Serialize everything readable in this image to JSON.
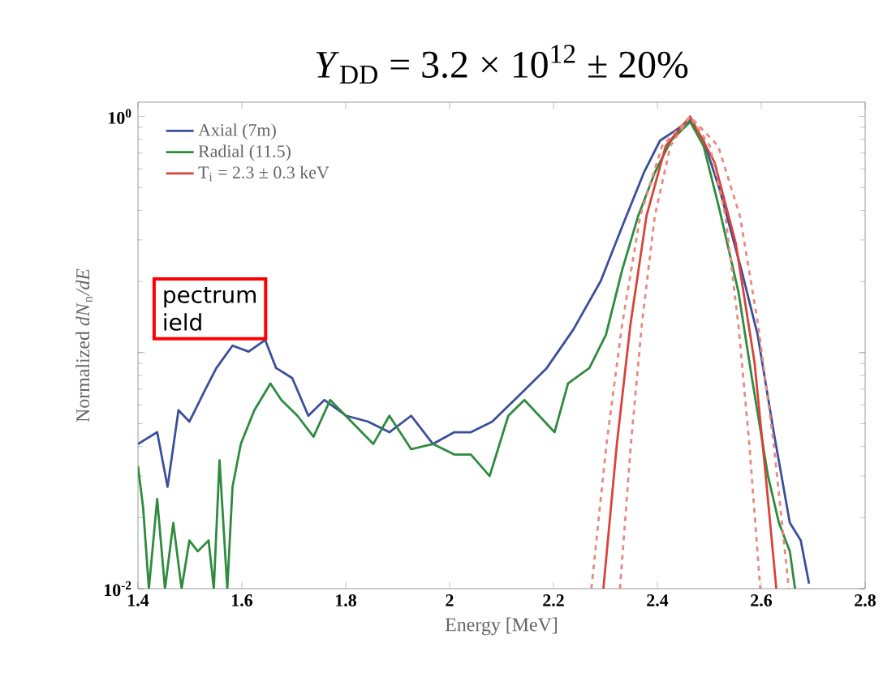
{
  "chart_data": {
    "type": "line",
    "title": "*Y*$_{DD}$ = 3.2 × 10$^{12}$ ± 20%",
    "xlabel": "Energy [MeV]",
    "ylabel": "Normalized *dN*$_{n}$*/dE*",
    "annotations": [
      "pectrum",
      "ield"
    ],
    "log": "y",
    "xlim": [
      1.4,
      2.8
    ],
    "ylim": [
      0.01,
      1.15
    ],
    "xticks": [
      1.4,
      1.6,
      1.8,
      2,
      2.2,
      2.4,
      2.6,
      2.8
    ],
    "yticks": [
      {
        "value": 0.01,
        "label": "10$^{-2}$"
      },
      {
        "value": 0.1,
        "label": null
      },
      {
        "value": 1,
        "label": "10$^{0}$"
      }
    ],
    "legend": "top left",
    "marker": "none",
    "series": [
      {
        "name": "Axial (7m)",
        "color": "#3b4f9a",
        "x": [
          1.4,
          1.437,
          1.457,
          1.478,
          1.499,
          1.53,
          1.551,
          1.582,
          1.613,
          1.645,
          1.666,
          1.697,
          1.728,
          1.759,
          1.801,
          1.843,
          1.884,
          1.926,
          1.968,
          2.009,
          2.041,
          2.082,
          2.134,
          2.187,
          2.238,
          2.291,
          2.332,
          2.374,
          2.405,
          2.437,
          2.463,
          2.489,
          2.52,
          2.562,
          2.593,
          2.624,
          2.655,
          2.676,
          2.692
        ],
        "values": [
          0.041,
          0.046,
          0.027,
          0.057,
          0.051,
          0.07,
          0.086,
          0.107,
          0.101,
          0.113,
          0.086,
          0.078,
          0.054,
          0.063,
          0.054,
          0.051,
          0.046,
          0.054,
          0.041,
          0.046,
          0.046,
          0.051,
          0.066,
          0.086,
          0.125,
          0.201,
          0.341,
          0.578,
          0.79,
          0.88,
          0.97,
          0.79,
          0.49,
          0.223,
          0.119,
          0.046,
          0.019,
          0.016,
          0.0105
        ]
      },
      {
        "name": "Radial (11.5)",
        "color": "#2e8b3e",
        "x": [
          1.4,
          1.41,
          1.421,
          1.437,
          1.452,
          1.468,
          1.484,
          1.499,
          1.515,
          1.536,
          1.546,
          1.557,
          1.572,
          1.582,
          1.598,
          1.624,
          1.655,
          1.676,
          1.707,
          1.738,
          1.77,
          1.811,
          1.853,
          1.884,
          1.926,
          1.968,
          2.009,
          2.041,
          2.077,
          2.113,
          2.144,
          2.202,
          2.228,
          2.269,
          2.301,
          2.332,
          2.363,
          2.395,
          2.426,
          2.463,
          2.489,
          2.52,
          2.556,
          2.582,
          2.613,
          2.634,
          2.655,
          2.665
        ],
        "values": [
          0.033,
          0.022,
          0.01,
          0.024,
          0.01,
          0.019,
          0.01,
          0.016,
          0.0144,
          0.016,
          0.01,
          0.035,
          0.01,
          0.027,
          0.041,
          0.057,
          0.074,
          0.063,
          0.054,
          0.044,
          0.063,
          0.051,
          0.041,
          0.054,
          0.039,
          0.041,
          0.037,
          0.037,
          0.03,
          0.054,
          0.063,
          0.046,
          0.074,
          0.086,
          0.119,
          0.223,
          0.379,
          0.578,
          0.79,
          0.95,
          0.75,
          0.4,
          0.181,
          0.078,
          0.03,
          0.019,
          0.0144,
          0.01
        ]
      },
      {
        "name": "T$_{i}$ = 2.3 ± 0.3 keV",
        "color": "#d9423a",
        "x": [
          2.296,
          2.322,
          2.348,
          2.379,
          2.416,
          2.463,
          2.51,
          2.551,
          2.587,
          2.608,
          2.629
        ],
        "values": [
          0.01,
          0.041,
          0.131,
          0.379,
          0.75,
          1,
          0.64,
          0.29,
          0.091,
          0.031,
          0.01
        ]
      },
      {
        "color": "#e88a80",
        "line_style": "dashed",
        "x": [
          2.328,
          2.349,
          2.37,
          2.395,
          2.425,
          2.463,
          2.501,
          2.531,
          2.556,
          2.577,
          2.598
        ],
        "values": [
          0.01,
          0.041,
          0.131,
          0.379,
          0.75,
          1,
          0.75,
          0.379,
          0.131,
          0.041,
          0.01
        ]
      },
      {
        "color": "#e88a80",
        "line_style": "dashed",
        "x": [
          2.273,
          2.302,
          2.332,
          2.367,
          2.409,
          2.463,
          2.517,
          2.559,
          2.594,
          2.624,
          2.653
        ],
        "values": [
          0.01,
          0.041,
          0.131,
          0.379,
          0.75,
          1,
          0.75,
          0.379,
          0.131,
          0.041,
          0.01
        ]
      }
    ]
  }
}
